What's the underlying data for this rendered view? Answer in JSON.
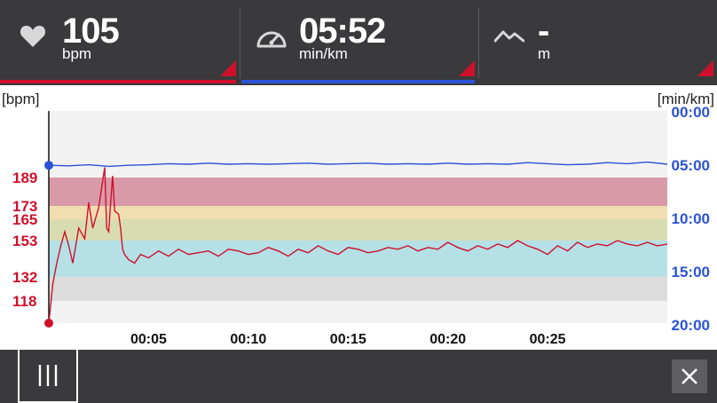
{
  "metrics": {
    "heart_rate": {
      "value": "105",
      "unit": "bpm",
      "icon": "heart-icon"
    },
    "pace": {
      "value": "05:52",
      "unit": "min/km",
      "icon": "speedometer-icon"
    },
    "altitude": {
      "value": "-",
      "unit": "m",
      "icon": "mountain-icon"
    }
  },
  "colors": {
    "hr_line": "#d0102b",
    "pace_line": "#2b52d6",
    "zone_red": "#d89aa8",
    "zone_yellow": "#f1deb0",
    "zone_olive": "#d9dcb1",
    "zone_cyan": "#b4e0e6",
    "zone_grey": "#dcdcdc",
    "plot_bg": "#f2f2f2"
  },
  "chart_data": {
    "type": "line",
    "left_axis_unit": "[bpm]",
    "right_axis_unit": "[min/km]",
    "hr_ticks": [
      "189",
      "173",
      "165",
      "153",
      "132",
      "118"
    ],
    "pace_ticks": [
      "00:00",
      "05:00",
      "10:00",
      "15:00",
      "20:00"
    ],
    "x_ticks": [
      "00:05",
      "00:10",
      "00:15",
      "00:20",
      "00:25"
    ],
    "x_range_minutes": [
      0,
      31
    ],
    "hr_zones": [
      [
        173,
        189
      ],
      [
        165,
        173
      ],
      [
        153,
        165
      ],
      [
        132,
        153
      ],
      [
        118,
        132
      ]
    ],
    "series": [
      {
        "name": "bpm",
        "x_minutes": [
          0,
          0.2,
          0.4,
          0.6,
          0.8,
          1.0,
          1.2,
          1.5,
          1.8,
          2.0,
          2.2,
          2.5,
          2.8,
          2.9,
          3.0,
          3.1,
          3.2,
          3.3,
          3.5,
          3.6,
          3.7,
          3.8,
          4.0,
          4.3,
          4.6,
          5.0,
          5.5,
          6.0,
          6.5,
          7.0,
          7.5,
          8.0,
          8.5,
          9.0,
          9.5,
          10.0,
          10.5,
          11.0,
          11.5,
          12.0,
          12.5,
          13.0,
          13.5,
          14.0,
          14.5,
          15.0,
          15.5,
          16.0,
          16.5,
          17.0,
          17.5,
          18.0,
          18.5,
          19.0,
          19.5,
          20.0,
          20.5,
          21.0,
          21.5,
          22.0,
          22.5,
          23.0,
          23.5,
          24.0,
          24.5,
          25.0,
          25.5,
          26.0,
          26.5,
          27.0,
          27.5,
          28.0,
          28.5,
          29.0,
          29.5,
          30.0,
          30.5,
          31.0
        ],
        "values": [
          106,
          128,
          140,
          150,
          158,
          150,
          140,
          160,
          154,
          175,
          160,
          172,
          195,
          160,
          158,
          175,
          190,
          170,
          168,
          160,
          148,
          145,
          142,
          140,
          145,
          143,
          147,
          144,
          148,
          145,
          146,
          147,
          144,
          148,
          147,
          145,
          146,
          149,
          147,
          144,
          148,
          146,
          150,
          147,
          145,
          149,
          148,
          146,
          147,
          149,
          148,
          150,
          147,
          149,
          148,
          152,
          149,
          147,
          150,
          148,
          151,
          149,
          153,
          150,
          148,
          145,
          150,
          147,
          152,
          149,
          151,
          150,
          153,
          151,
          150,
          152,
          150,
          151
        ]
      },
      {
        "name": "min/km",
        "x_minutes": [
          0,
          1,
          2,
          3,
          4,
          5,
          6,
          7,
          8,
          9,
          10,
          11,
          12,
          13,
          14,
          15,
          16,
          17,
          18,
          19,
          20,
          21,
          22,
          23,
          24,
          25,
          26,
          27,
          28,
          29,
          30,
          31
        ],
        "values": [
          5.1,
          5.15,
          5.05,
          5.2,
          5.1,
          5.05,
          4.95,
          5.0,
          4.9,
          5.0,
          4.95,
          5.0,
          4.95,
          4.9,
          5.0,
          4.95,
          4.9,
          5.0,
          4.95,
          5.0,
          4.9,
          5.0,
          4.95,
          5.0,
          4.85,
          4.95,
          5.05,
          5.0,
          4.85,
          4.95,
          4.8,
          5.0
        ]
      }
    ]
  }
}
